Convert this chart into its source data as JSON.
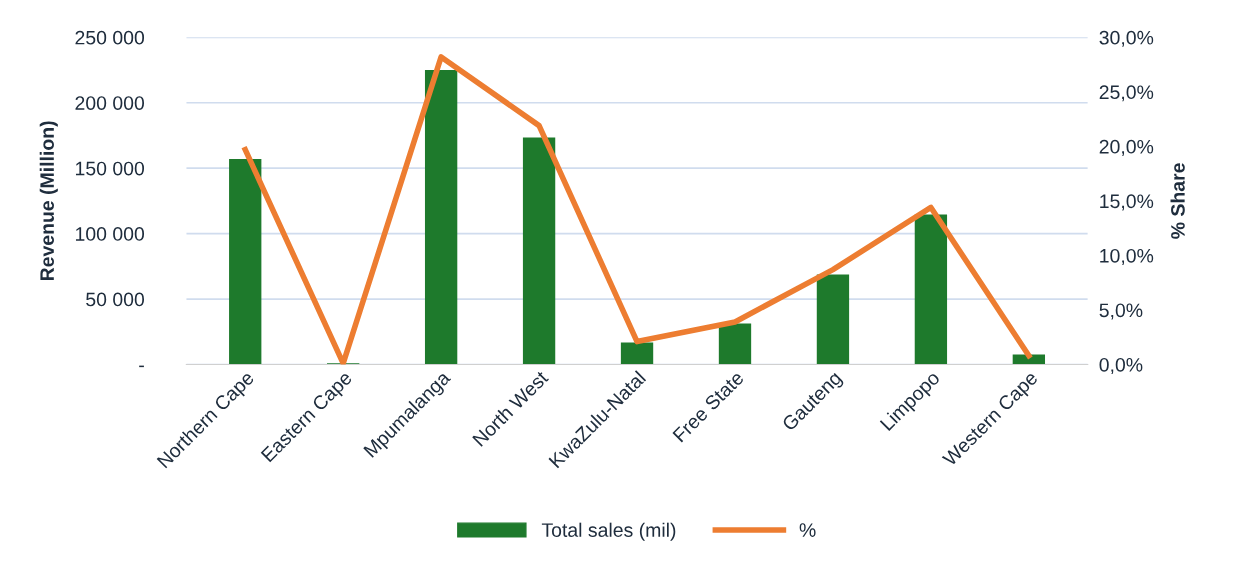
{
  "chart_data": {
    "type": "bar",
    "categories": [
      "Northern Cape",
      "Eastern Cape",
      "Mpumalanga",
      "North West",
      "KwaZulu-Natal",
      "Free State",
      "Gauteng",
      "Limpopo",
      "Western Cape"
    ],
    "ylabel": "Revenue (Million)",
    "y2label": "% Share",
    "series": [
      {
        "name": "Total sales (mil)",
        "color": "#1e7a2c",
        "values": [
          157000,
          1000,
          225000,
          173500,
          16800,
          31300,
          68800,
          114700,
          7600
        ]
      },
      {
        "name": "%",
        "type": "line",
        "axis": "y2",
        "color": "#ed7d31",
        "values": [
          19.7,
          0.1,
          28.2,
          21.9,
          2.1,
          3.9,
          8.7,
          14.4,
          0.8
        ]
      }
    ],
    "ylim": [
      0,
      250000
    ],
    "yticks": [
      {
        "value": 0,
        "label": "-"
      },
      {
        "value": 50000,
        "label": "50 000"
      },
      {
        "value": 100000,
        "label": "100 000"
      },
      {
        "value": 150000,
        "label": "150 000"
      },
      {
        "value": 200000,
        "label": "200 000"
      },
      {
        "value": 250000,
        "label": "250 000"
      }
    ],
    "y2lim": [
      0,
      30
    ],
    "y2ticks": [
      {
        "value": 0,
        "label": "0,0%"
      },
      {
        "value": 5,
        "label": "5,0%"
      },
      {
        "value": 10,
        "label": "10,0%"
      },
      {
        "value": 15,
        "label": "15,0%"
      },
      {
        "value": 20,
        "label": "20,0%"
      },
      {
        "value": 25,
        "label": "25,0%"
      },
      {
        "value": 30,
        "label": "30,0%"
      }
    ],
    "grid": "y",
    "legend": "bottom",
    "marker": "none",
    "line_style": "solid"
  }
}
